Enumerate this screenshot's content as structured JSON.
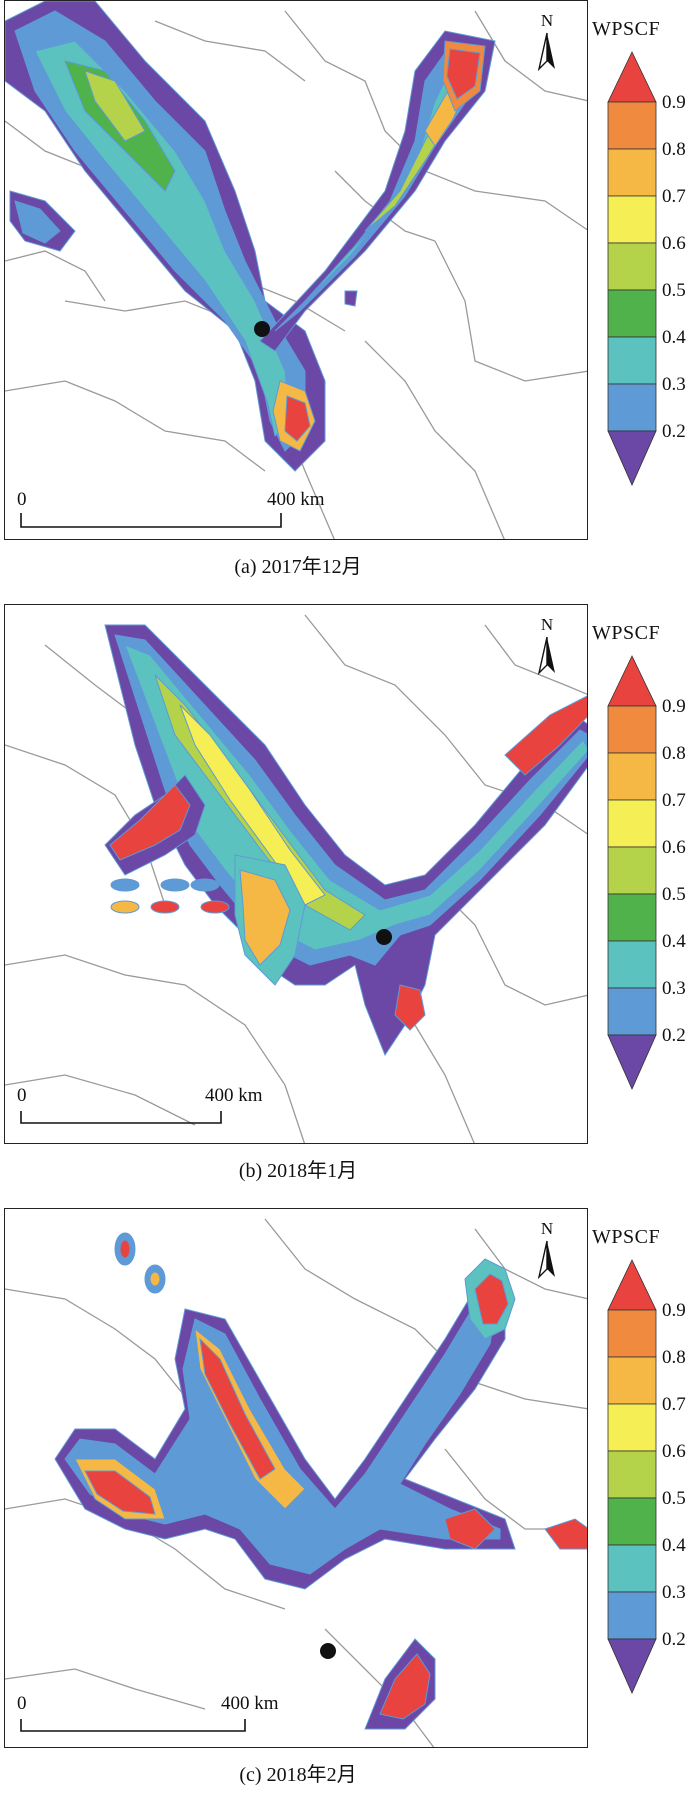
{
  "legend": {
    "title": "WPSCF",
    "ticks": [
      "0.9",
      "0.8",
      "0.7",
      "0.6",
      "0.5",
      "0.4",
      "0.3",
      "0.2"
    ],
    "colors": [
      "#e8433f",
      "#f08a3e",
      "#f6b844",
      "#f5ee55",
      "#b5d24b",
      "#4fb24a",
      "#5bc2c0",
      "#5e9ad6",
      "#6b47a6"
    ]
  },
  "north_letter": "N",
  "scale": {
    "start": "0",
    "end": "400 km"
  },
  "panels": [
    {
      "caption": "(a)  2017年12月"
    },
    {
      "caption": "(b)  2018年1月"
    },
    {
      "caption": "(c)  2018年2月"
    }
  ]
}
